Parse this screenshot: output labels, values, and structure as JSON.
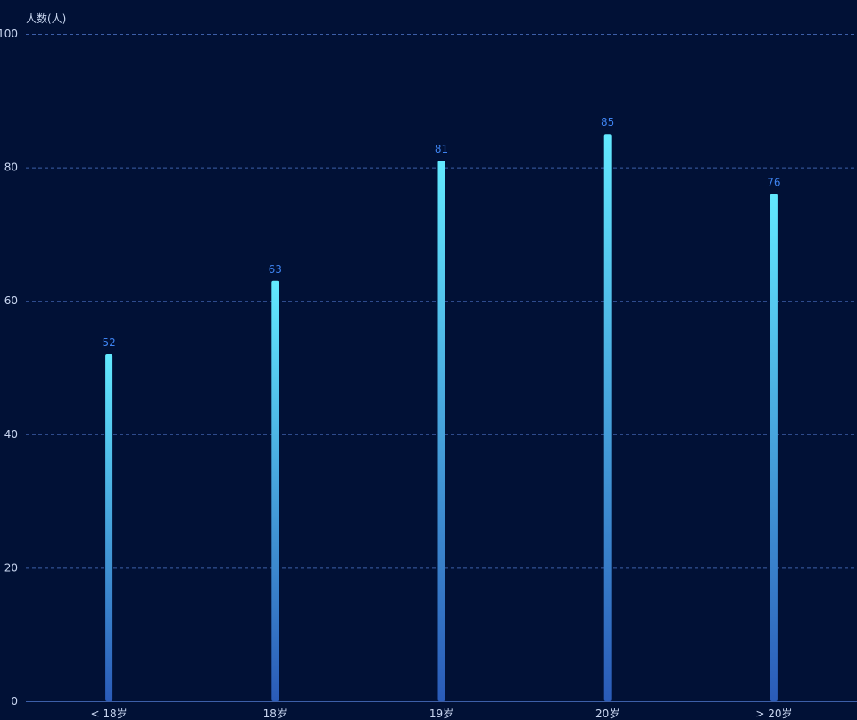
{
  "chart_data": {
    "type": "bar",
    "ylabel": "人数(人)",
    "categories": [
      "< 18岁",
      "18岁",
      "19岁",
      "20岁",
      "> 20岁"
    ],
    "values": [
      52,
      63,
      81,
      85,
      76
    ],
    "ylim": [
      0,
      100
    ],
    "yticks": [
      0,
      20,
      40,
      60,
      80,
      100
    ],
    "grid": true,
    "grid_style": "dashed",
    "show_data_labels": true
  },
  "colors": {
    "background": "#011136",
    "bar_top": "#62E9FF",
    "bar_bottom": "#2A5BB8",
    "grid": "#3D5FA8",
    "axis": "#3D5FA8",
    "tick_text": "#C9D6F0",
    "data_label": "#3E83F0"
  }
}
